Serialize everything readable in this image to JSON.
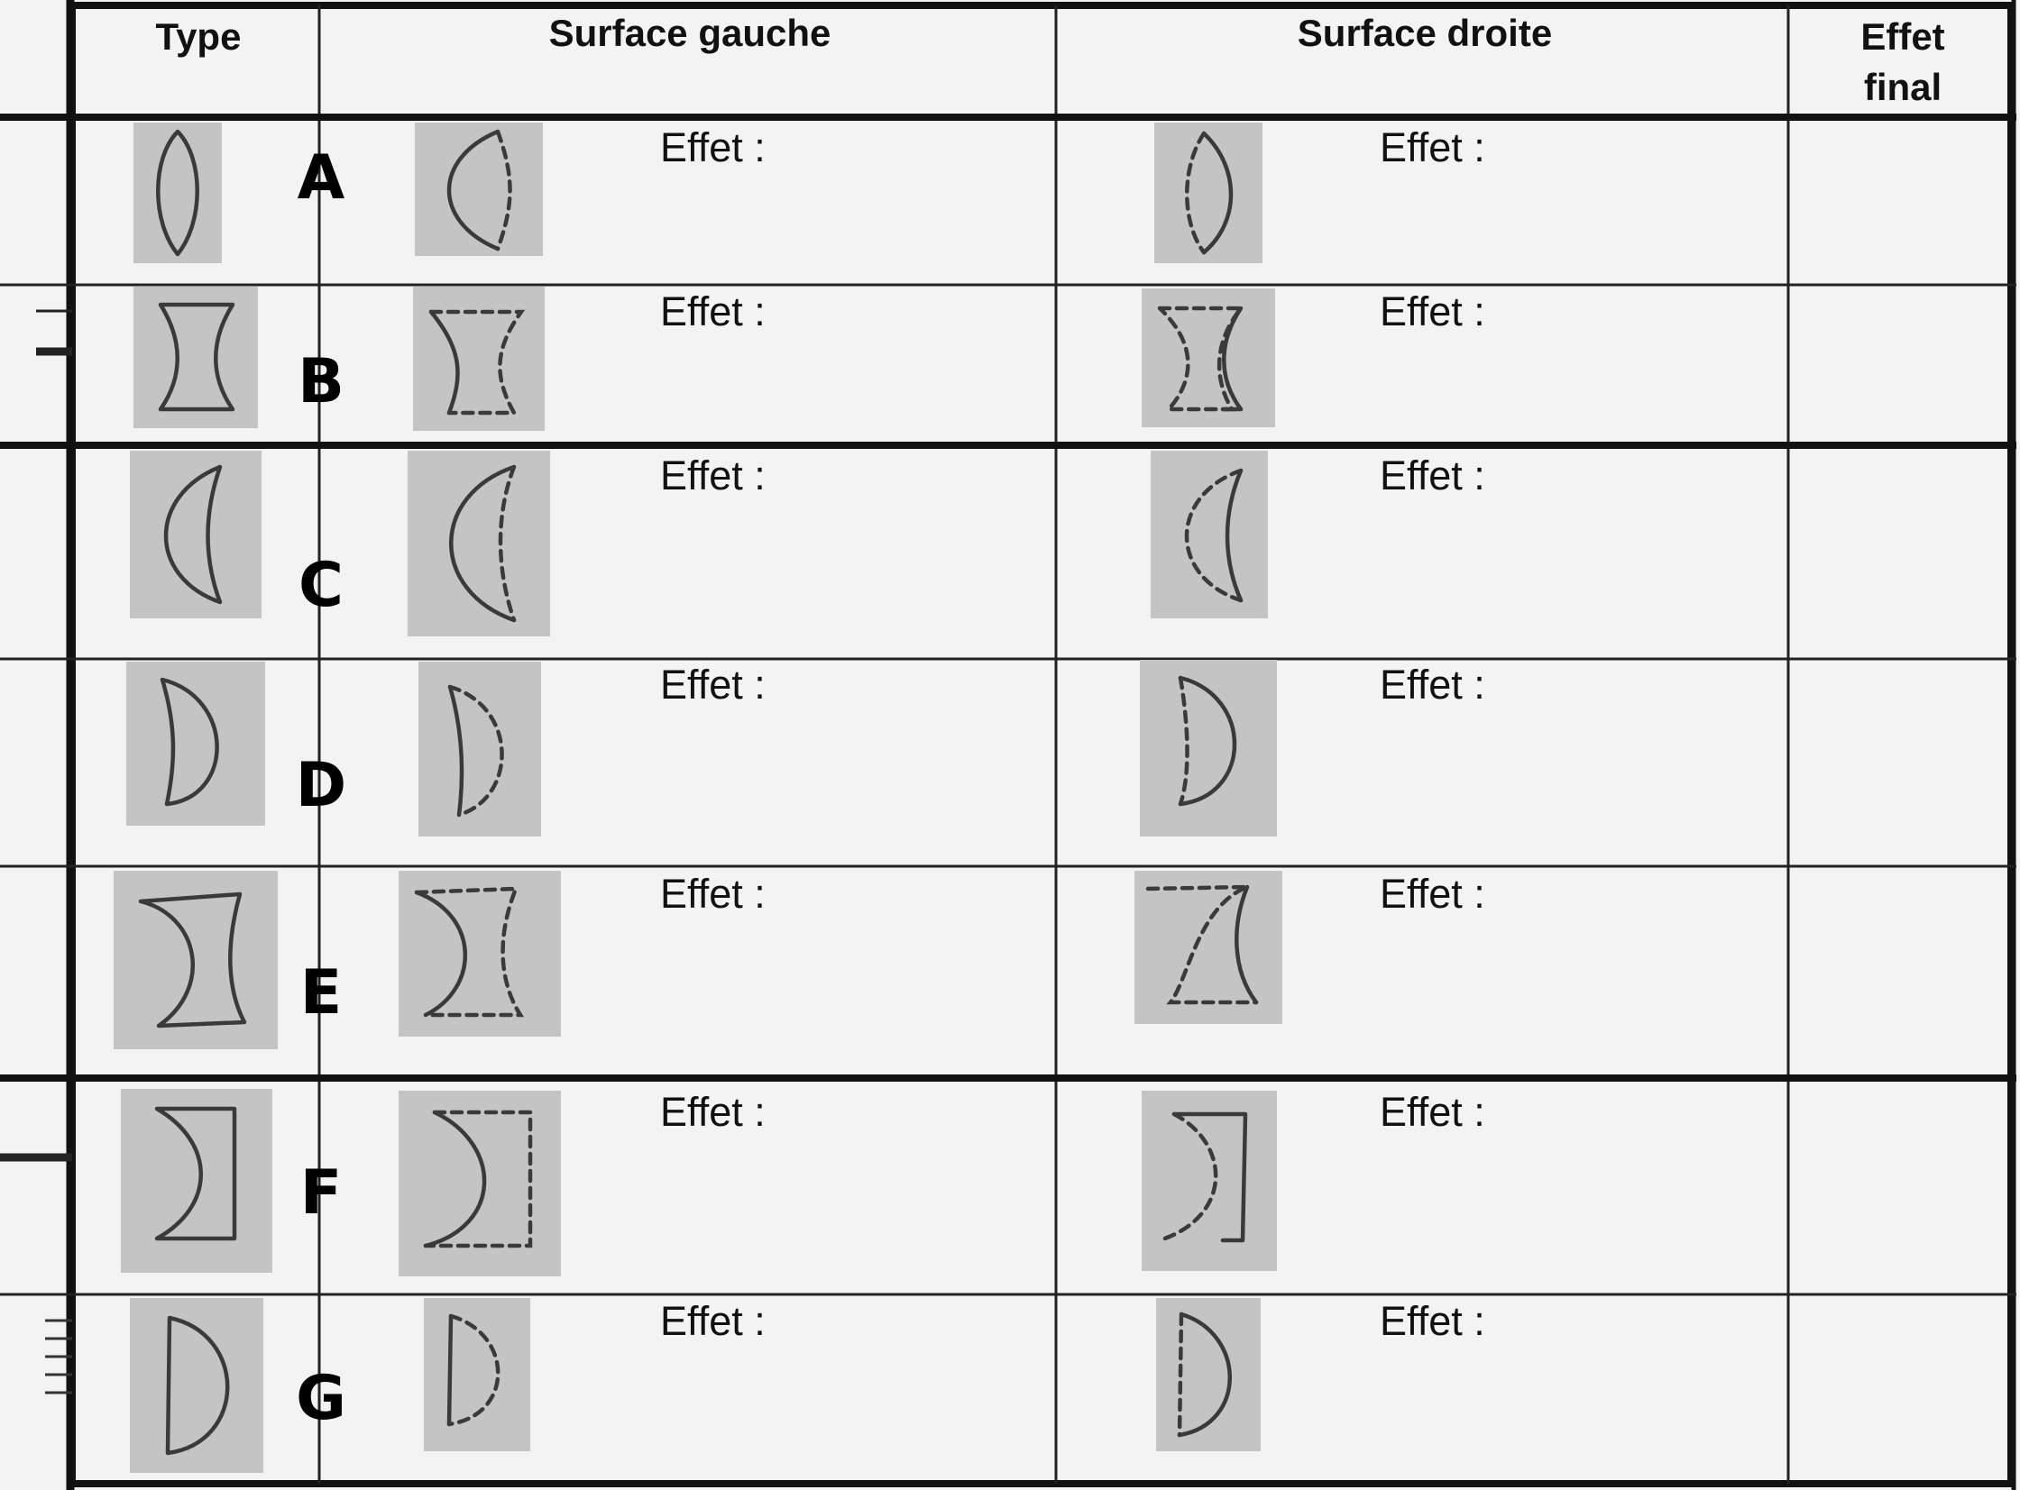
{
  "table": {
    "headers": {
      "type": "Type",
      "left": "Surface gauche",
      "right": "Surface droite",
      "final_line1": "Effet",
      "final_line2": "final"
    },
    "effect_label": "Effet :",
    "rows": [
      {
        "letter": "A",
        "shape": "biconvex"
      },
      {
        "letter": "B",
        "shape": "biconcave"
      },
      {
        "letter": "C",
        "shape": "convex-meniscus"
      },
      {
        "letter": "D",
        "shape": "biconvex-asymmetric"
      },
      {
        "letter": "E",
        "shape": "concave-meniscus"
      },
      {
        "letter": "F",
        "shape": "plano-concave"
      },
      {
        "letter": "G",
        "shape": "plano-convex"
      }
    ]
  },
  "colors": {
    "ink": "#111111",
    "paper": "#f3f3f3",
    "thumb_background": "#c4c4c4"
  }
}
